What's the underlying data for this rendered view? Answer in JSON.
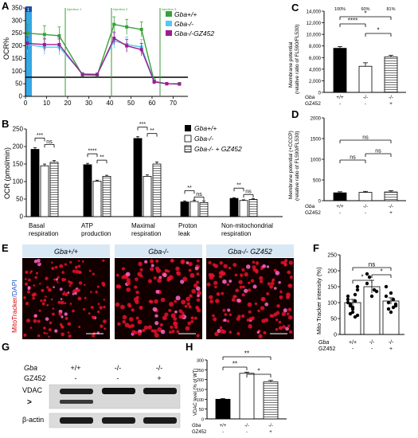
{
  "panels": {
    "A": {
      "letter": "A",
      "ylabel": "OCR%",
      "yticks": [
        "0",
        "50",
        "100",
        "150",
        "200",
        "250",
        "300",
        "350"
      ],
      "xticks": [
        "0",
        "10",
        "20",
        "30",
        "40",
        "50",
        "60",
        "70"
      ],
      "injections": [
        "Injection 1",
        "Injection 2",
        "Injection 3"
      ],
      "start_label": "1",
      "legend": [
        "Gba+/+",
        "Gba-/-",
        "Gba-/-GZ452"
      ]
    },
    "B": {
      "letter": "B",
      "ylabel": "OCR (pmol/min)",
      "yticks": [
        "0",
        "50",
        "100",
        "150",
        "200",
        "250"
      ],
      "groups": [
        "Basal respiration",
        "ATP production",
        "Maximal respiration",
        "Proton leak",
        "Non-mitochondrial respiration"
      ],
      "legend": [
        "Gba+/+",
        "Gba-/-",
        "Gba-/- + GZ452"
      ],
      "sig": [
        "***",
        "ns",
        "****",
        "**",
        "***",
        "**",
        "**",
        "ns",
        "**",
        "ns"
      ]
    },
    "C": {
      "letter": "C",
      "ylabel": "Membrane potential (relative ratio of FL590/FL530)",
      "yticks": [
        "0",
        "2,000",
        "4,000",
        "6,000",
        "8,000",
        "10,000",
        "12,000",
        "14,000"
      ],
      "pct": [
        "100%",
        "60%",
        "81%"
      ],
      "sig": [
        "*",
        "****",
        "*"
      ]
    },
    "D": {
      "letter": "D",
      "ylabel": "Membrane potential (+CCCP) (relative ratio of FL590/FL530)",
      "yticks": [
        "0",
        "500",
        "1000",
        "1500",
        "2000"
      ],
      "sig": [
        "ns",
        "ns",
        "ns"
      ]
    },
    "E": {
      "letter": "E",
      "ylabel": "MitoTracker/DAPI",
      "titles": [
        "Gba+/+",
        "Gba-/-",
        "Gba-/- GZ452"
      ]
    },
    "F": {
      "letter": "F",
      "ylabel": "Mito Tracker intensity (%)",
      "yticks": [
        "0",
        "50",
        "100",
        "150",
        "200",
        "250"
      ],
      "sig": [
        "ns",
        "*",
        "*"
      ]
    },
    "G": {
      "letter": "G",
      "row_gba": "Gba",
      "row_gz": "GZ452",
      "gba_vals": [
        "+/+",
        "-/-",
        "-/-"
      ],
      "gz_vals": [
        "-",
        "-",
        "+"
      ],
      "vdac": "VDAC",
      "arrow": ">",
      "actin": "β-actin"
    },
    "H": {
      "letter": "H",
      "ylabel": "VDAC level (% of WT)",
      "yticks": [
        "0",
        "50",
        "100",
        "150",
        "200",
        "250",
        "300"
      ],
      "sig": [
        "**",
        "**",
        "*"
      ]
    }
  },
  "genotype_rows": {
    "gba": "Gba",
    "gz": "GZ452",
    "gba_vals": [
      "+/+",
      "-/-",
      "-/-"
    ],
    "gz_vals": [
      "-",
      "-",
      "+"
    ]
  },
  "colors": {
    "wt": "#3aa03a",
    "ko": "#55c8f0",
    "kogz": "#9b1d8f",
    "blue_band": "#35a9e6",
    "inj_line": "#3a9a3a"
  },
  "chart_data": [
    {
      "panel": "A",
      "type": "line",
      "xlabel": "",
      "ylabel": "OCR%",
      "xlim": [
        0,
        77
      ],
      "ylim": [
        0,
        350
      ],
      "x": [
        1,
        9,
        16,
        27,
        34,
        42,
        48,
        55,
        61,
        67,
        73
      ],
      "series": [
        {
          "name": "Gba+/+",
          "values": [
            250,
            245,
            240,
            85,
            83,
            285,
            275,
            265,
            60,
            50,
            50
          ],
          "err": [
            35,
            35,
            35,
            5,
            5,
            30,
            30,
            30,
            10,
            5,
            5
          ]
        },
        {
          "name": "Gba-/-",
          "values": [
            205,
            195,
            195,
            90,
            88,
            220,
            205,
            195,
            58,
            50,
            48
          ],
          "err": [
            30,
            30,
            30,
            5,
            5,
            30,
            30,
            30,
            10,
            5,
            5
          ]
        },
        {
          "name": "Gba-/-GZ452",
          "values": [
            210,
            205,
            205,
            87,
            86,
            230,
            200,
            185,
            57,
            50,
            49
          ],
          "err": [
            25,
            25,
            25,
            5,
            5,
            25,
            25,
            25,
            8,
            5,
            5
          ]
        }
      ]
    },
    {
      "panel": "B",
      "type": "bar",
      "ylabel": "OCR (pmol/min)",
      "ylim": [
        0,
        250
      ],
      "categories": [
        "Basal respiration",
        "ATP production",
        "Maximal respiration",
        "Proton leak",
        "Non-mitochondrial respiration"
      ],
      "series": [
        {
          "name": "Gba+/+",
          "values": [
            192,
            148,
            223,
            42,
            52
          ],
          "err": [
            5,
            4,
            5,
            3,
            2
          ]
        },
        {
          "name": "Gba-/-",
          "values": [
            145,
            101,
            115,
            43,
            46
          ],
          "err": [
            5,
            3,
            4,
            4,
            2
          ]
        },
        {
          "name": "Gba-/- + GZ452",
          "values": [
            155,
            115,
            150,
            40,
            49
          ],
          "err": [
            5,
            3,
            6,
            5,
            2
          ]
        }
      ]
    },
    {
      "panel": "C",
      "type": "bar",
      "ylabel": "Membrane potential (relative ratio of FL590/FL530)",
      "ylim": [
        0,
        14000
      ],
      "categories": [
        "+/+ -",
        "-/- -",
        "-/- +"
      ],
      "values": [
        7600,
        4500,
        6100
      ],
      "err": [
        300,
        600,
        300
      ]
    },
    {
      "panel": "D",
      "type": "bar",
      "ylabel": "Membrane potential (+CCCP)",
      "ylim": [
        0,
        2000
      ],
      "categories": [
        "+/+ -",
        "-/- -",
        "-/- +"
      ],
      "values": [
        190,
        200,
        210
      ],
      "err": [
        25,
        25,
        30
      ]
    },
    {
      "panel": "F",
      "type": "scatter",
      "ylabel": "Mito Tracker intensity (%)",
      "ylim": [
        0,
        250
      ],
      "categories": [
        "+/+ -",
        "-/- -",
        "-/- +"
      ],
      "means": [
        100,
        150,
        105
      ],
      "err": [
        10,
        20,
        10
      ],
      "points": [
        [
          100,
          65,
          85,
          125,
          150,
          110,
          95,
          70,
          55,
          140,
          120,
          90,
          80,
          105,
          60
        ],
        [
          160,
          180,
          120,
          140,
          135,
          190
        ],
        [
          150,
          80,
          70,
          110,
          90,
          120,
          100,
          130,
          85,
          95
        ]
      ]
    },
    {
      "panel": "H",
      "type": "bar",
      "ylabel": "VDAC level (% of WT)",
      "ylim": [
        0,
        300
      ],
      "categories": [
        "+/+ -",
        "-/- -",
        "-/- +"
      ],
      "values": [
        100,
        232,
        188
      ],
      "err": [
        4,
        6,
        8
      ]
    }
  ]
}
